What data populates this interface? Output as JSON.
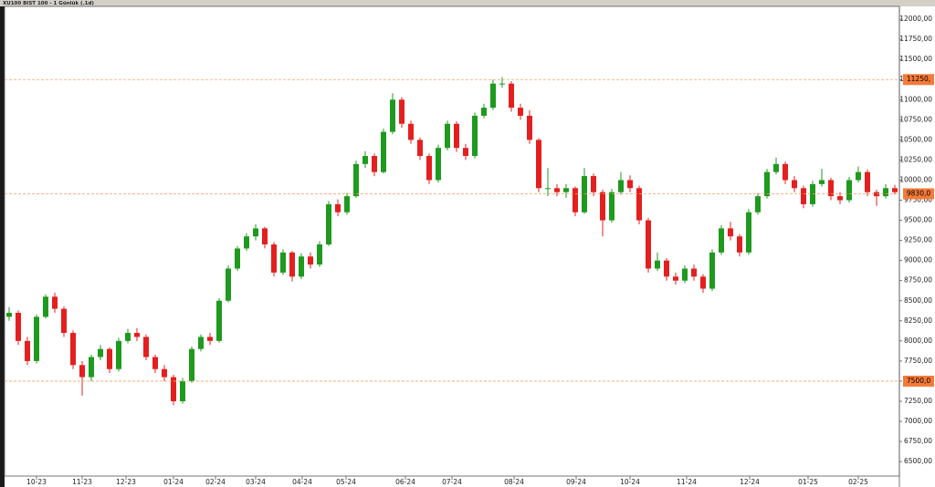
{
  "chart_data": {
    "type": "candlestick",
    "title": "XU100 BIST 100 - 1 Günlük (.1d)",
    "up_color": "#1e9a1e",
    "down_color": "#e3201f",
    "line_color": "#f2a06a",
    "label_color": "#f47a3a",
    "xlim": [
      0,
      98
    ],
    "ylim": [
      6320,
      12160
    ],
    "xticks": [
      {
        "value": 3.5,
        "label": "10-23"
      },
      {
        "value": 8.5,
        "label": "11-23"
      },
      {
        "value": 13.3,
        "label": "12-23"
      },
      {
        "value": 18.5,
        "label": "01-24"
      },
      {
        "value": 23.1,
        "label": "02-24"
      },
      {
        "value": 27.5,
        "label": "03-24"
      },
      {
        "value": 32.6,
        "label": "04-24"
      },
      {
        "value": 37.4,
        "label": "05-24"
      },
      {
        "value": 43.9,
        "label": "06-24"
      },
      {
        "value": 49.0,
        "label": "07-24"
      },
      {
        "value": 55.8,
        "label": "08-24"
      },
      {
        "value": 62.6,
        "label": "09-24"
      },
      {
        "value": 68.5,
        "label": "10-24"
      },
      {
        "value": 74.7,
        "label": "11-24"
      },
      {
        "value": 81.6,
        "label": "12-24"
      },
      {
        "value": 88.0,
        "label": "01-25"
      },
      {
        "value": 93.5,
        "label": "02-25"
      }
    ],
    "yticks": [
      {
        "value": 6500,
        "label": "6500,00"
      },
      {
        "value": 6750,
        "label": "6750,00"
      },
      {
        "value": 7000,
        "label": "7000,00"
      },
      {
        "value": 7250,
        "label": "7250,00"
      },
      {
        "value": 7500,
        "label": "7500,00"
      },
      {
        "value": 7750,
        "label": "7750,00"
      },
      {
        "value": 8000,
        "label": "8000,00"
      },
      {
        "value": 8250,
        "label": "8250,00"
      },
      {
        "value": 8500,
        "label": "8500,00"
      },
      {
        "value": 8750,
        "label": "8750,00"
      },
      {
        "value": 9000,
        "label": "9000,00"
      },
      {
        "value": 9250,
        "label": "9250,00"
      },
      {
        "value": 9500,
        "label": "9500,00"
      },
      {
        "value": 9750,
        "label": "9750,00"
      },
      {
        "value": 10000,
        "label": "10000,00"
      },
      {
        "value": 10250,
        "label": "10250,00"
      },
      {
        "value": 10500,
        "label": "10500,00"
      },
      {
        "value": 10750,
        "label": "10750,00"
      },
      {
        "value": 11000,
        "label": "11000,00"
      },
      {
        "value": 11250,
        "label": "11250,00"
      },
      {
        "value": 11500,
        "label": "11500,00"
      },
      {
        "value": 11750,
        "label": "11750,00"
      },
      {
        "value": 12000,
        "label": "12000,00"
      }
    ],
    "hlines": [
      {
        "value": 11250,
        "label": "11250,"
      },
      {
        "value": 9830,
        "label": "9830,0"
      },
      {
        "value": 7500,
        "label": "7500,0"
      }
    ],
    "ohlc": [
      [
        8300,
        8420,
        8250,
        8350
      ],
      [
        8350,
        8380,
        7950,
        8000
      ],
      [
        8000,
        8050,
        7700,
        7750
      ],
      [
        7750,
        8330,
        7720,
        8300
      ],
      [
        8300,
        8580,
        8280,
        8550
      ],
      [
        8550,
        8600,
        8350,
        8400
      ],
      [
        8400,
        8430,
        8050,
        8100
      ],
      [
        8100,
        8130,
        7650,
        7700
      ],
      [
        7700,
        7750,
        7320,
        7550
      ],
      [
        7550,
        7830,
        7500,
        7800
      ],
      [
        7800,
        7950,
        7760,
        7900
      ],
      [
        7900,
        7920,
        7600,
        7650
      ],
      [
        7650,
        8040,
        7620,
        8000
      ],
      [
        8000,
        8150,
        7970,
        8100
      ],
      [
        8100,
        8160,
        8000,
        8050
      ],
      [
        8050,
        8080,
        7760,
        7800
      ],
      [
        7800,
        7830,
        7600,
        7650
      ],
      [
        7650,
        7700,
        7500,
        7550
      ],
      [
        7550,
        7580,
        7200,
        7250
      ],
      [
        7250,
        7540,
        7220,
        7500
      ],
      [
        7500,
        7930,
        7480,
        7900
      ],
      [
        7900,
        8080,
        7870,
        8050
      ],
      [
        8050,
        8100,
        7950,
        8000
      ],
      [
        8000,
        8530,
        7980,
        8500
      ],
      [
        8500,
        8940,
        8480,
        8900
      ],
      [
        8900,
        9180,
        8870,
        9150
      ],
      [
        9150,
        9340,
        9120,
        9300
      ],
      [
        9300,
        9450,
        9250,
        9400
      ],
      [
        9400,
        9420,
        9150,
        9200
      ],
      [
        9200,
        9230,
        8800,
        8850
      ],
      [
        8850,
        9140,
        8820,
        9100
      ],
      [
        9100,
        9120,
        8740,
        8800
      ],
      [
        8800,
        9090,
        8770,
        9050
      ],
      [
        9050,
        9100,
        8900,
        8950
      ],
      [
        8950,
        9240,
        8920,
        9200
      ],
      [
        9200,
        9740,
        9180,
        9700
      ],
      [
        9700,
        9760,
        9550,
        9600
      ],
      [
        9600,
        9840,
        9570,
        9800
      ],
      [
        9800,
        10240,
        9780,
        10200
      ],
      [
        10200,
        10360,
        10150,
        10300
      ],
      [
        10300,
        10330,
        10050,
        10100
      ],
      [
        10100,
        10640,
        10080,
        10600
      ],
      [
        10600,
        11080,
        10570,
        11000
      ],
      [
        11000,
        11030,
        10650,
        10700
      ],
      [
        10700,
        10740,
        10450,
        10500
      ],
      [
        10500,
        10530,
        10250,
        10300
      ],
      [
        10300,
        10330,
        9950,
        10000
      ],
      [
        10000,
        10440,
        9970,
        10400
      ],
      [
        10400,
        10740,
        10370,
        10700
      ],
      [
        10700,
        10730,
        10350,
        10400
      ],
      [
        10400,
        10450,
        10250,
        10300
      ],
      [
        10300,
        10840,
        10270,
        10800
      ],
      [
        10800,
        10950,
        10770,
        10900
      ],
      [
        10900,
        11250,
        10870,
        11200
      ],
      [
        11200,
        11280,
        11150,
        11200
      ],
      [
        11200,
        11230,
        10850,
        10900
      ],
      [
        10900,
        10950,
        10750,
        10800
      ],
      [
        10800,
        10870,
        10450,
        10500
      ],
      [
        10500,
        10520,
        9850,
        9900
      ],
      [
        9900,
        10150,
        9800,
        9900
      ],
      [
        9900,
        9950,
        9800,
        9850
      ],
      [
        9850,
        9950,
        9780,
        9900
      ],
      [
        9900,
        9920,
        9550,
        9600
      ],
      [
        9600,
        10150,
        9580,
        10050
      ],
      [
        10050,
        10080,
        9800,
        9850
      ],
      [
        9850,
        9880,
        9300,
        9500
      ],
      [
        9500,
        9890,
        9470,
        9850
      ],
      [
        9850,
        10100,
        9820,
        10000
      ],
      [
        10000,
        10060,
        9850,
        9900
      ],
      [
        9900,
        9930,
        9450,
        9500
      ],
      [
        9500,
        9530,
        8850,
        8900
      ],
      [
        8900,
        9100,
        8870,
        9000
      ],
      [
        9000,
        9030,
        8750,
        8800
      ],
      [
        8800,
        8850,
        8700,
        8750
      ],
      [
        8750,
        8940,
        8720,
        8900
      ],
      [
        8900,
        8950,
        8750,
        8800
      ],
      [
        8800,
        8830,
        8600,
        8650
      ],
      [
        8650,
        9140,
        8620,
        9100
      ],
      [
        9100,
        9440,
        9070,
        9400
      ],
      [
        9400,
        9480,
        9250,
        9300
      ],
      [
        9300,
        9330,
        9050,
        9100
      ],
      [
        9100,
        9640,
        9070,
        9600
      ],
      [
        9600,
        9840,
        9570,
        9800
      ],
      [
        9800,
        10140,
        9770,
        10100
      ],
      [
        10100,
        10280,
        10070,
        10200
      ],
      [
        10200,
        10230,
        9950,
        10000
      ],
      [
        10000,
        10050,
        9850,
        9900
      ],
      [
        9900,
        9930,
        9650,
        9700
      ],
      [
        9700,
        9990,
        9670,
        9950
      ],
      [
        9950,
        10140,
        9920,
        10000
      ],
      [
        10000,
        10030,
        9750,
        9800
      ],
      [
        9800,
        9850,
        9700,
        9750
      ],
      [
        9750,
        10040,
        9720,
        10000
      ],
      [
        10000,
        10170,
        9970,
        10100
      ],
      [
        10100,
        10130,
        9800,
        9850
      ],
      [
        9850,
        9880,
        9680,
        9800
      ],
      [
        9800,
        9950,
        9770,
        9900
      ],
      [
        9900,
        9940,
        9820,
        9850
      ]
    ]
  }
}
